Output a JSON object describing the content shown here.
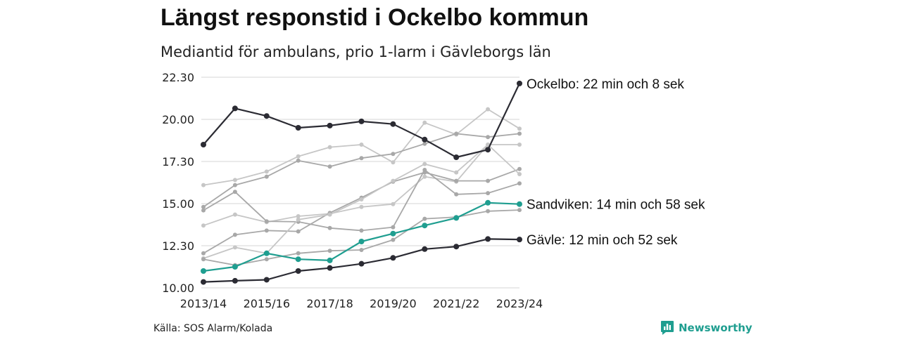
{
  "title": "Längst responstid i Ockelbo kommun",
  "subtitle": "Mediantid för ambulans, prio 1-larm i Gävleborgs län",
  "source": "Källa: SOS Alarm/Kolada",
  "brand": {
    "name": "Newsworthy",
    "icon": "bar-chart-bubble-icon",
    "color": "#1f9e90"
  },
  "colors": {
    "highlight": "#2b2b33",
    "accent": "#1f9e90",
    "muted": [
      "#a8a8a8",
      "#c6c6c6"
    ]
  },
  "chart_data": {
    "type": "line",
    "x": [
      "2013/14",
      "2014/15",
      "2015/16",
      "2016/17",
      "2017/18",
      "2018/19",
      "2019/20",
      "2020/21",
      "2021/22",
      "2022/23",
      "2023/24"
    ],
    "x_tick_labels": [
      "2013/14",
      "2015/16",
      "2017/18",
      "2019/20",
      "2021/22",
      "2023/24"
    ],
    "y_tick_labels": [
      "10.00",
      "12.30",
      "15.00",
      "17.30",
      "20.00",
      "22.30"
    ],
    "ylim": [
      10.0,
      22.5
    ],
    "grid": true,
    "y_unit_note": "values in minutes; tick labels in min.sek format",
    "series": [
      {
        "name": "Ockelbo",
        "label": "Ockelbo: 22 min och 8 sek",
        "highlight": true,
        "color": "#2b2b33",
        "values": [
          18.5,
          20.65,
          20.2,
          19.5,
          19.63,
          19.88,
          19.72,
          18.8,
          17.75,
          18.2,
          22.13
        ]
      },
      {
        "name": "Sandviken",
        "label": "Sandviken: 14 min och 58 sek",
        "highlight": true,
        "color": "#1f9e90",
        "values": [
          11.0,
          11.25,
          12.05,
          11.7,
          11.63,
          12.75,
          13.22,
          13.7,
          14.15,
          15.05,
          14.97
        ]
      },
      {
        "name": "Gävle",
        "label": "Gävle: 12 min och 52 sek",
        "highlight": true,
        "color": "#2b2b33",
        "values": [
          10.35,
          10.42,
          10.48,
          11.0,
          11.18,
          11.43,
          11.78,
          12.3,
          12.45,
          12.9,
          12.87
        ]
      },
      {
        "color": "#c6c6c6",
        "values": [
          16.1,
          16.4,
          16.9,
          17.8,
          18.35,
          18.5,
          17.45,
          19.8,
          19.1,
          20.6,
          19.45
        ]
      },
      {
        "color": "#a8a8a8",
        "values": [
          14.8,
          16.1,
          16.6,
          17.55,
          17.2,
          17.7,
          17.95,
          18.55,
          19.15,
          18.95,
          19.15
        ]
      },
      {
        "color": "#c6c6c6",
        "values": [
          13.7,
          14.35,
          13.9,
          14.25,
          14.4,
          14.8,
          14.97,
          16.6,
          16.3,
          18.5,
          18.5
        ]
      },
      {
        "color": "#a8a8a8",
        "values": [
          14.6,
          15.7,
          13.95,
          13.92,
          13.55,
          13.4,
          13.6,
          17.0,
          15.55,
          15.62,
          16.2
        ]
      },
      {
        "color": "#a8a8a8",
        "values": [
          12.05,
          13.15,
          13.4,
          13.35,
          14.45,
          15.35,
          16.3,
          16.85,
          16.35,
          16.35,
          17.05
        ]
      },
      {
        "color": "#c6c6c6",
        "values": [
          11.75,
          12.4,
          12.05,
          14.05,
          14.35,
          15.25,
          16.35,
          17.35,
          16.85,
          18.5,
          16.75
        ]
      },
      {
        "color": "#a8a8a8",
        "values": [
          11.7,
          11.35,
          11.7,
          12.05,
          12.2,
          12.25,
          12.85,
          14.1,
          14.2,
          14.55,
          14.62
        ]
      }
    ]
  }
}
